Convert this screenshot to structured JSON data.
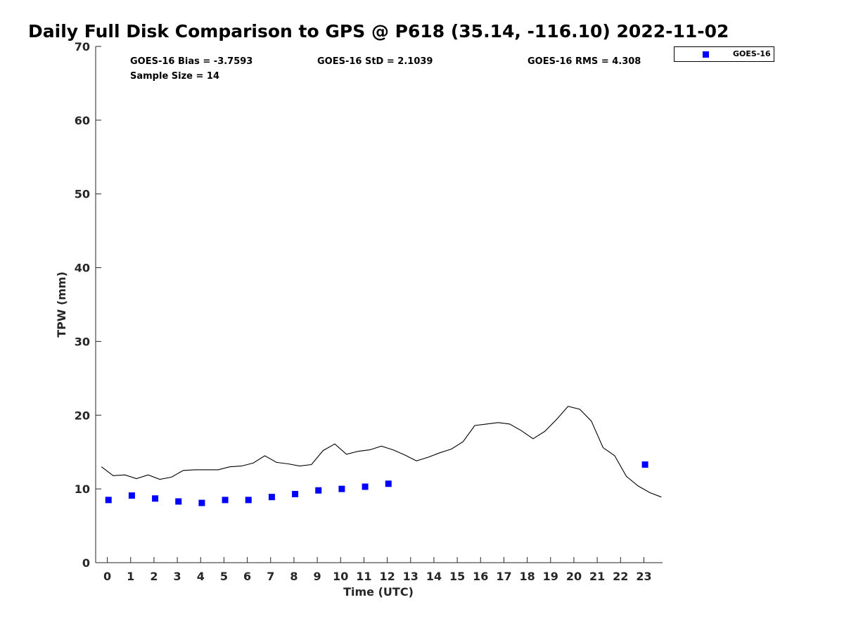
{
  "title": "Daily Full Disk Comparison to GPS @ P618 (35.14, -116.10) 2022-11-02",
  "stats": {
    "bias": "GOES-16 Bias = -3.7593",
    "std": "GOES-16 StD = 2.1039",
    "rms": "GOES-16 RMS = 4.308",
    "sample_size": "Sample Size = 14"
  },
  "legend": {
    "label": "GOES-16",
    "placement": "top-right, outside axes"
  },
  "colors": {
    "goes16": "#0000ff",
    "gps_line": "#000000"
  },
  "chart_data": {
    "type": "scatter",
    "title": "Daily Full Disk Comparison to GPS @ P618 (35.14, -116.10) 2022-11-02",
    "xlabel": "Time (UTC)",
    "ylabel": "TPW (mm)",
    "xlim": [
      -0.5,
      23.8
    ],
    "ylim": [
      0,
      70
    ],
    "x_ticks": [
      0,
      1,
      2,
      3,
      4,
      5,
      6,
      7,
      8,
      9,
      10,
      11,
      12,
      13,
      14,
      15,
      16,
      17,
      18,
      19,
      20,
      21,
      22,
      23
    ],
    "y_ticks": [
      0,
      10,
      20,
      30,
      40,
      50,
      60,
      70
    ],
    "grid": false,
    "series": [
      {
        "name": "GOES-16",
        "type": "scatter",
        "color": "#0000ff",
        "x": [
          0.05,
          1.05,
          2.05,
          3.05,
          4.05,
          5.05,
          6.05,
          7.05,
          8.05,
          9.05,
          10.05,
          11.05,
          12.05,
          23.05
        ],
        "y": [
          8.5,
          9.1,
          8.7,
          8.3,
          8.1,
          8.5,
          8.5,
          8.9,
          9.3,
          9.8,
          10.0,
          10.3,
          10.7,
          13.3
        ]
      },
      {
        "type": "line",
        "color": "#000000",
        "x": [
          -0.25,
          0.25,
          0.75,
          1.25,
          1.75,
          2.25,
          2.75,
          3.25,
          3.75,
          4.25,
          4.75,
          5.25,
          5.75,
          6.25,
          6.75,
          7.25,
          7.75,
          8.25,
          8.75,
          9.25,
          9.75,
          10.25,
          10.75,
          11.25,
          11.75,
          12.25,
          12.75,
          13.25,
          13.75,
          14.25,
          14.75,
          15.25,
          15.75,
          16.25,
          16.75,
          17.25,
          17.75,
          18.25,
          18.75,
          19.25,
          19.75,
          20.25,
          20.75,
          21.25,
          21.75,
          22.25,
          22.75,
          23.25,
          23.75
        ],
        "y": [
          13.0,
          11.8,
          11.9,
          11.4,
          11.9,
          11.3,
          11.6,
          12.5,
          12.6,
          12.6,
          12.6,
          13.0,
          13.1,
          13.5,
          14.5,
          13.6,
          13.4,
          13.1,
          13.3,
          15.2,
          16.1,
          14.7,
          15.1,
          15.3,
          15.8,
          15.3,
          14.6,
          13.8,
          14.3,
          14.9,
          15.4,
          16.4,
          18.6,
          18.8,
          19.0,
          18.8,
          17.9,
          16.8,
          17.8,
          19.4,
          21.2,
          20.8,
          19.2,
          15.6,
          14.5,
          11.7,
          10.4,
          9.5,
          8.9
        ]
      }
    ]
  }
}
